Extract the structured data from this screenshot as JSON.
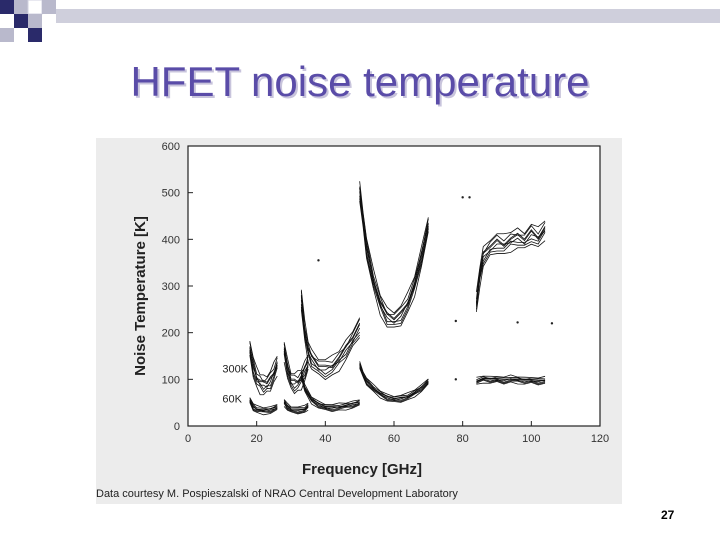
{
  "slide": {
    "title": "HFET noise temperature",
    "caption": "Data courtesy M. Pospieszalski of NRAO Central Development Laboratory",
    "page_number": "27"
  },
  "colors": {
    "title": "#5a4ca8",
    "deco_dark": "#2a2a6a",
    "deco_light": "#b9b9cc",
    "curve": "#111111"
  },
  "chart_data": {
    "type": "line",
    "xlabel": "Frequency [GHz]",
    "ylabel": "Noise Temperature [K]",
    "xlim": [
      0,
      120
    ],
    "ylim": [
      0,
      600
    ],
    "xticks": [
      0,
      20,
      40,
      60,
      80,
      100,
      120
    ],
    "yticks": [
      0,
      100,
      200,
      300,
      400,
      500,
      600
    ],
    "grid": false,
    "annotations": [
      {
        "text": "300K",
        "x": 10,
        "y": 115
      },
      {
        "text": "60K",
        "x": 10,
        "y": 50
      }
    ],
    "series": [
      {
        "group": "300K",
        "x": [
          18,
          19,
          20,
          21,
          22,
          23,
          24,
          25,
          26
        ],
        "y": [
          165,
          125,
          100,
          90,
          85,
          88,
          95,
          110,
          130
        ]
      },
      {
        "group": "300K",
        "x": [
          28,
          29,
          30,
          31,
          32,
          33,
          34,
          35
        ],
        "y": [
          160,
          120,
          95,
          90,
          92,
          100,
          115,
          135
        ]
      },
      {
        "group": "300K",
        "x": [
          33,
          34,
          35,
          36,
          38,
          40,
          42,
          44,
          46,
          48,
          50
        ],
        "y": [
          270,
          200,
          160,
          140,
          125,
          120,
          125,
          140,
          160,
          185,
          210
        ]
      },
      {
        "group": "300K",
        "x": [
          50,
          51,
          52,
          54,
          56,
          58,
          60,
          62,
          64,
          66,
          68,
          70
        ],
        "y": [
          500,
          440,
          380,
          310,
          260,
          230,
          225,
          235,
          260,
          300,
          360,
          430
        ]
      },
      {
        "group": "300K",
        "x": [
          84,
          85,
          86,
          88,
          90,
          92,
          94,
          96,
          98,
          100,
          102,
          104
        ],
        "y": [
          260,
          320,
          360,
          380,
          390,
          385,
          395,
          400,
          395,
          410,
          400,
          420
        ]
      },
      {
        "group": "60K",
        "x": [
          18,
          19,
          20,
          22,
          24,
          26
        ],
        "y": [
          55,
          40,
          35,
          32,
          33,
          40
        ]
      },
      {
        "group": "60K",
        "x": [
          28,
          29,
          30,
          32,
          34,
          35
        ],
        "y": [
          50,
          40,
          35,
          33,
          35,
          42
        ]
      },
      {
        "group": "60K",
        "x": [
          33,
          34,
          36,
          38,
          40,
          42,
          44,
          46,
          48,
          50
        ],
        "y": [
          110,
          80,
          55,
          45,
          40,
          38,
          40,
          42,
          45,
          50
        ]
      },
      {
        "group": "60K",
        "x": [
          50,
          51,
          52,
          54,
          56,
          58,
          60,
          62,
          64,
          66,
          68,
          70
        ],
        "y": [
          130,
          110,
          95,
          80,
          68,
          60,
          57,
          58,
          62,
          70,
          80,
          95
        ]
      },
      {
        "group": "60K",
        "x": [
          84,
          86,
          88,
          90,
          92,
          94,
          96,
          98,
          100,
          102,
          104
        ],
        "y": [
          95,
          100,
          98,
          100,
          97,
          100,
          98,
          96,
          98,
          95,
          97
        ]
      }
    ],
    "markers": [
      {
        "x": 80,
        "y": 490
      },
      {
        "x": 82,
        "y": 490
      },
      {
        "x": 38,
        "y": 355
      },
      {
        "x": 78,
        "y": 225
      },
      {
        "x": 96,
        "y": 222
      },
      {
        "x": 106,
        "y": 220
      },
      {
        "x": 78,
        "y": 100
      }
    ]
  }
}
